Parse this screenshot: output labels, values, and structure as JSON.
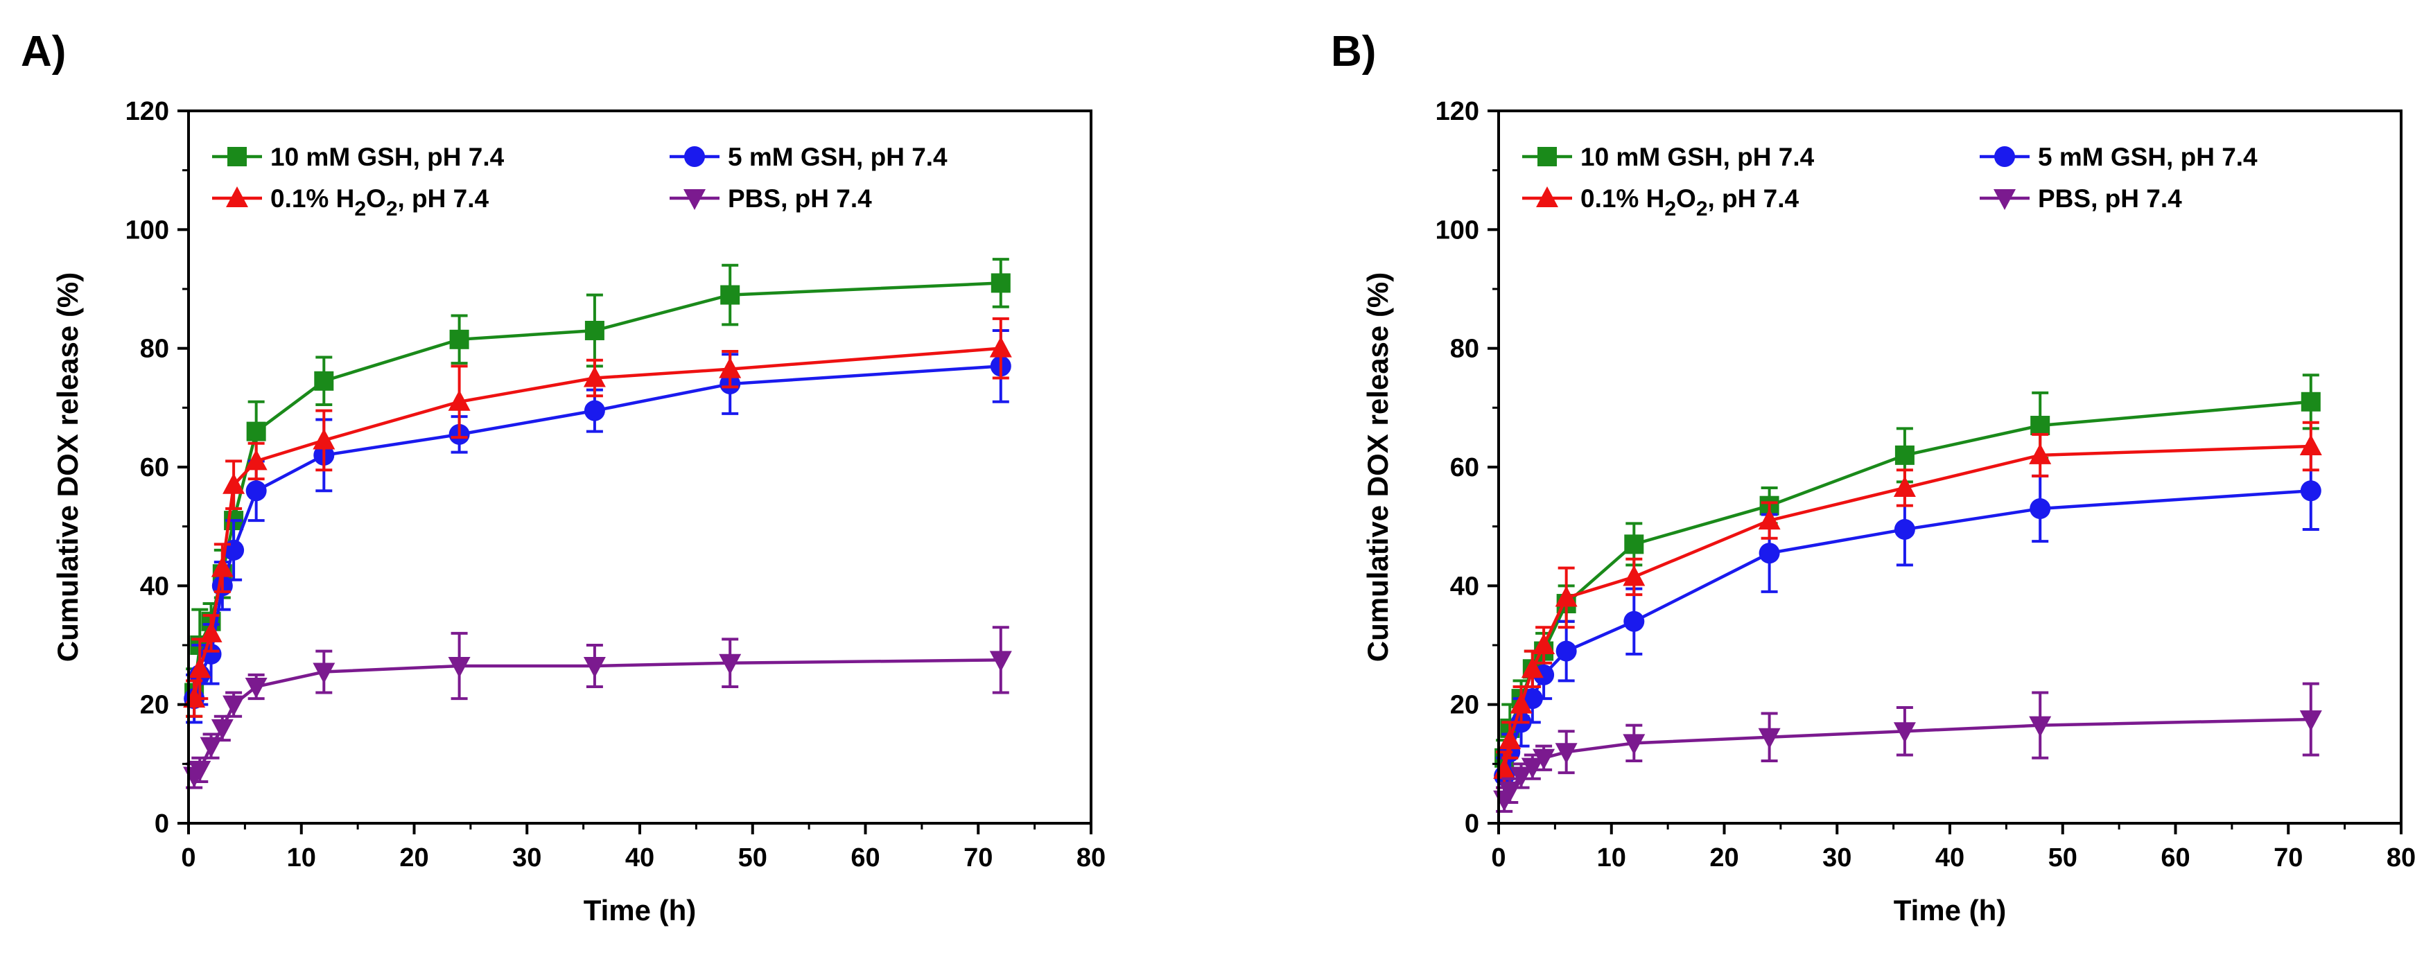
{
  "chart_data": [
    {
      "panel_label": "A)",
      "type": "line",
      "xlabel": "Time (h)",
      "ylabel": "Cumulative DOX release (%)",
      "xlim": [
        0,
        80
      ],
      "ylim": [
        0,
        120
      ],
      "x_ticks": [
        "0",
        "10",
        "20",
        "30",
        "40",
        "50",
        "60",
        "70",
        "80"
      ],
      "y_ticks": [
        "0",
        "20",
        "40",
        "60",
        "80",
        "100",
        "120"
      ],
      "legend_position": "top",
      "series": [
        {
          "name": "10 mM GSH, pH 7.4",
          "legend_main": "10 mM GSH, pH 7.4",
          "legend_sub": "",
          "legend_tail": "",
          "color": "#1a8a1a",
          "marker": "square",
          "x": [
            0.5,
            1,
            2,
            3,
            4,
            6,
            12,
            24,
            36,
            48,
            72
          ],
          "y": [
            22,
            30,
            34,
            42,
            51,
            66,
            74.5,
            81.5,
            83,
            89,
            91
          ],
          "err": [
            4,
            6,
            3,
            4,
            5,
            5,
            4,
            4,
            6,
            5,
            4
          ]
        },
        {
          "name": "5 mM GSH, pH 7.4",
          "legend_main": "5 mM GSH, pH 7.4",
          "legend_sub": "",
          "legend_tail": "",
          "color": "#1a1aee",
          "marker": "circle",
          "x": [
            0.5,
            1,
            2,
            3,
            4,
            6,
            12,
            24,
            36,
            48,
            72
          ],
          "y": [
            21,
            25,
            28.5,
            40,
            46,
            56,
            62,
            65.5,
            69.5,
            74,
            77
          ],
          "err": [
            4,
            5,
            5,
            4,
            5,
            5,
            6,
            3,
            3.5,
            5,
            6
          ]
        },
        {
          "name": "0.1% H2O2, pH 7.4",
          "legend_main": "0.1% H",
          "legend_sub": "2",
          "legend_tail": "O",
          "legend_sub2": "2",
          "legend_end": ", pH 7.4",
          "color": "#ee1111",
          "marker": "triangle-up",
          "x": [
            0.5,
            1,
            2,
            3,
            4,
            6,
            12,
            24,
            36,
            48,
            72
          ],
          "y": [
            21,
            26,
            32,
            43,
            57,
            61,
            64.5,
            71,
            75,
            76.5,
            80
          ],
          "err": [
            3,
            5,
            3,
            4,
            4,
            3,
            5,
            6,
            3,
            3,
            5
          ]
        },
        {
          "name": "PBS, pH 7.4",
          "legend_main": "PBS, pH 7.4",
          "legend_sub": "",
          "legend_tail": "",
          "color": "#7b1a8f",
          "marker": "triangle-down",
          "x": [
            0.5,
            1,
            2,
            3,
            4,
            6,
            12,
            24,
            36,
            48,
            72
          ],
          "y": [
            8,
            9,
            13,
            16,
            20,
            23,
            25.5,
            26.5,
            26.5,
            27,
            27.5
          ],
          "err": [
            2,
            2,
            2,
            2,
            2,
            2,
            3.5,
            5.5,
            3.5,
            4,
            5.5
          ]
        }
      ]
    },
    {
      "panel_label": "B)",
      "type": "line",
      "xlabel": "Time (h)",
      "ylabel": "Cumulative DOX release (%)",
      "xlim": [
        0,
        80
      ],
      "ylim": [
        0,
        120
      ],
      "x_ticks": [
        "0",
        "10",
        "20",
        "30",
        "40",
        "50",
        "60",
        "70",
        "80"
      ],
      "y_ticks": [
        "0",
        "20",
        "40",
        "60",
        "80",
        "100",
        "120"
      ],
      "legend_position": "top",
      "series": [
        {
          "name": "10 mM GSH, pH 7.4",
          "legend_main": "10 mM GSH, pH 7.4",
          "legend_sub": "",
          "legend_tail": "",
          "color": "#1a8a1a",
          "marker": "square",
          "x": [
            0.5,
            1,
            2,
            3,
            4,
            6,
            12,
            24,
            36,
            48,
            72
          ],
          "y": [
            11,
            16,
            21,
            26,
            29,
            37,
            47,
            53.5,
            62,
            67,
            71
          ],
          "err": [
            3,
            4,
            3,
            3,
            3,
            3,
            3.5,
            3,
            4.5,
            5.5,
            4.5
          ]
        },
        {
          "name": "5 mM GSH, pH 7.4",
          "legend_main": "5 mM GSH, pH 7.4",
          "legend_sub": "",
          "legend_tail": "",
          "color": "#1a1aee",
          "marker": "circle",
          "x": [
            0.5,
            1,
            2,
            3,
            4,
            6,
            12,
            24,
            36,
            48,
            72
          ],
          "y": [
            8,
            12,
            17,
            21,
            25,
            29,
            34,
            45.5,
            49.5,
            53,
            56
          ],
          "err": [
            3,
            3,
            4,
            4,
            4,
            5,
            5.5,
            6.5,
            6,
            5.5,
            6.5
          ]
        },
        {
          "name": "0.1% H2O2, pH 7.4",
          "legend_main": "0.1% H",
          "legend_sub": "2",
          "legend_tail": "O",
          "legend_sub2": "2",
          "legend_end": ", pH 7.4",
          "color": "#ee1111",
          "marker": "triangle-up",
          "x": [
            0.5,
            1,
            2,
            3,
            4,
            6,
            12,
            24,
            36,
            48,
            72
          ],
          "y": [
            9,
            14,
            20,
            26,
            30,
            38,
            41.5,
            51,
            56.5,
            62,
            63.5
          ],
          "err": [
            3,
            3,
            3,
            3,
            3,
            5,
            3,
            3,
            3,
            3.5,
            4
          ]
        },
        {
          "name": "PBS, pH 7.4",
          "legend_main": "PBS, pH 7.4",
          "legend_sub": "",
          "legend_tail": "",
          "color": "#7b1a8f",
          "marker": "triangle-down",
          "x": [
            0.5,
            1,
            2,
            3,
            4,
            6,
            12,
            24,
            36,
            48,
            72
          ],
          "y": [
            4,
            5.5,
            8,
            9.5,
            11,
            12,
            13.5,
            14.5,
            15.5,
            16.5,
            17.5
          ],
          "err": [
            2,
            2,
            2,
            2,
            2,
            3.5,
            3,
            4,
            4,
            5.5,
            6
          ]
        }
      ]
    }
  ]
}
